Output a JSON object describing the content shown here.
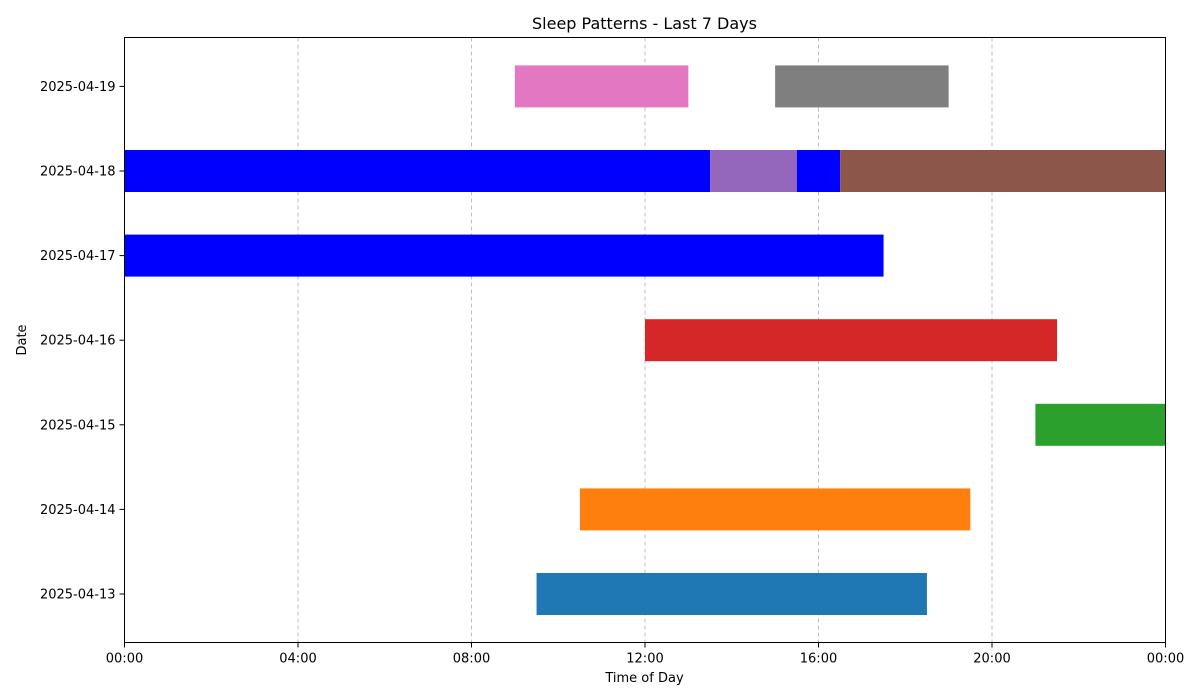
{
  "chart_data": {
    "type": "bar",
    "orientation": "horizontal-timeline",
    "title": "Sleep Patterns - Last 7 Days",
    "xlabel": "Time of Day",
    "ylabel": "Date",
    "xlim": [
      0,
      24
    ],
    "x_ticks": [
      "00:00",
      "04:00",
      "08:00",
      "12:00",
      "16:00",
      "20:00",
      "00:00"
    ],
    "categories": [
      "2025-04-13",
      "2025-04-14",
      "2025-04-15",
      "2025-04-16",
      "2025-04-17",
      "2025-04-18",
      "2025-04-19"
    ],
    "grid": "vertical dashed",
    "legend": "none",
    "bars": [
      {
        "date": "2025-04-13",
        "start": 9.5,
        "end": 18.5,
        "color": "#1f77b4"
      },
      {
        "date": "2025-04-14",
        "start": 10.5,
        "end": 19.5,
        "color": "#ff7f0e"
      },
      {
        "date": "2025-04-15",
        "start": 21.0,
        "end": 24.0,
        "color": "#2ca02c"
      },
      {
        "date": "2025-04-16",
        "start": 12.0,
        "end": 21.5,
        "color": "#d62728"
      },
      {
        "date": "2025-04-17",
        "start": 0.0,
        "end": 17.5,
        "color": "#0000ff"
      },
      {
        "date": "2025-04-18",
        "start": 0.0,
        "end": 13.5,
        "color": "#0000ff"
      },
      {
        "date": "2025-04-18",
        "start": 13.5,
        "end": 15.5,
        "color": "#9467bd"
      },
      {
        "date": "2025-04-18",
        "start": 15.5,
        "end": 16.5,
        "color": "#0000ff"
      },
      {
        "date": "2025-04-18",
        "start": 16.5,
        "end": 24.0,
        "color": "#8c564b"
      },
      {
        "date": "2025-04-19",
        "start": 9.0,
        "end": 13.0,
        "color": "#e377c2"
      },
      {
        "date": "2025-04-19",
        "start": 15.0,
        "end": 19.0,
        "color": "#7f7f7f"
      }
    ]
  }
}
